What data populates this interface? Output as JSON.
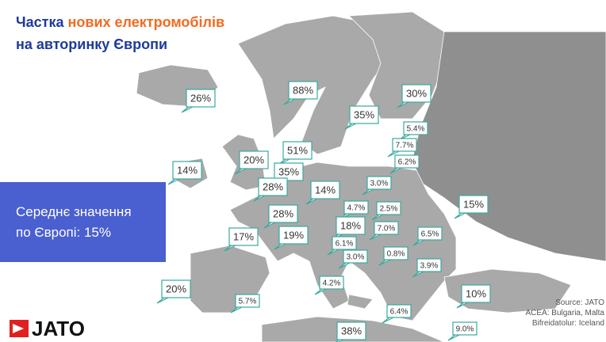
{
  "title": {
    "line1": [
      "Частка",
      "нових електромобілів"
    ],
    "line2": "на авторинку Європи"
  },
  "average_box": {
    "line1": "Середнє значення",
    "line2": "по Європі: 15%"
  },
  "logo": "JATO",
  "source": [
    "Source: JATO",
    "ACEA: Bulgaria, Malta",
    "Bifreidatolur: Iceland"
  ],
  "callouts": [
    {
      "text": "26%"
    },
    {
      "text": "88%"
    },
    {
      "text": "30%"
    },
    {
      "text": "35%"
    },
    {
      "text": "5.4%"
    },
    {
      "text": "7.7%"
    },
    {
      "text": "51%"
    },
    {
      "text": "6.2%"
    },
    {
      "text": "14%"
    },
    {
      "text": "20%"
    },
    {
      "text": "35%"
    },
    {
      "text": "28%"
    },
    {
      "text": "14%"
    },
    {
      "text": "3.0%"
    },
    {
      "text": "4.7%"
    },
    {
      "text": "2.5%"
    },
    {
      "text": "15%"
    },
    {
      "text": "28%"
    },
    {
      "text": "18%"
    },
    {
      "text": "7.0%"
    },
    {
      "text": "6.5%"
    },
    {
      "text": "17%"
    },
    {
      "text": "19%"
    },
    {
      "text": "6.1%"
    },
    {
      "text": "0.8%"
    },
    {
      "text": "3.0%"
    },
    {
      "text": "3.9%"
    },
    {
      "text": "4.2%"
    },
    {
      "text": "20%"
    },
    {
      "text": "5.7%"
    },
    {
      "text": "10%"
    },
    {
      "text": "6.4%"
    },
    {
      "text": "9.0%"
    },
    {
      "text": "38%"
    }
  ]
}
